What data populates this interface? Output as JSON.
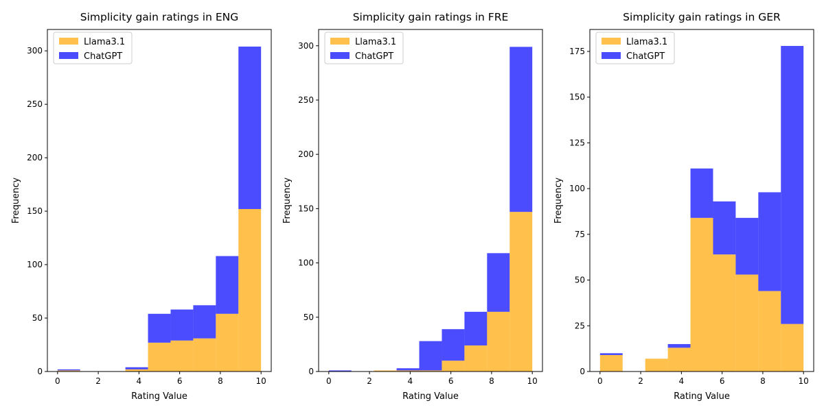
{
  "colors": {
    "llama": "#ffa500",
    "chatgpt": "#0000ff",
    "overlap": "#7f5080"
  },
  "chart_data": [
    {
      "type": "bar",
      "title": "Simplicity gain ratings in ENG",
      "xlabel": "Rating Value",
      "ylabel": "Frequency",
      "xlim": [
        -0.5,
        10.5
      ],
      "ylim": [
        0,
        320
      ],
      "xticks": [
        0,
        2,
        4,
        6,
        8,
        10
      ],
      "yticks": [
        0,
        50,
        100,
        150,
        200,
        250,
        300
      ],
      "bin_edges": [
        0,
        1.1111,
        2.2222,
        3.3333,
        4.4444,
        5.5556,
        6.6667,
        7.7778,
        8.8889,
        10
      ],
      "stacked": true,
      "series": [
        {
          "name": "Llama3.1",
          "values": [
            1,
            0,
            0,
            2,
            27,
            29,
            31,
            54,
            152
          ]
        },
        {
          "name": "ChatGPT",
          "values": [
            1,
            0,
            0,
            2,
            27,
            29,
            31,
            54,
            152
          ]
        }
      ],
      "legend": "top-left"
    },
    {
      "type": "bar",
      "title": "Simplicity gain ratings in FRE",
      "xlabel": "Rating Value",
      "ylabel": "Frequency",
      "xlim": [
        -0.5,
        10.5
      ],
      "ylim": [
        0,
        315
      ],
      "xticks": [
        0,
        2,
        4,
        6,
        8,
        10
      ],
      "yticks": [
        0,
        50,
        100,
        150,
        200,
        250,
        300
      ],
      "bin_edges": [
        0,
        1.1111,
        2.2222,
        3.3333,
        4.4444,
        5.5556,
        6.6667,
        7.7778,
        8.8889,
        10
      ],
      "stacked": true,
      "series": [
        {
          "name": "Llama3.1",
          "values": [
            0,
            0,
            1,
            1,
            1,
            10,
            24,
            55,
            147
          ]
        },
        {
          "name": "ChatGPT",
          "values": [
            1,
            0,
            0,
            2,
            27,
            29,
            31,
            54,
            152
          ]
        }
      ],
      "legend": "top-left"
    },
    {
      "type": "bar",
      "title": "Simplicity gain ratings in GER",
      "xlabel": "Rating Value",
      "ylabel": "Frequency",
      "xlim": [
        -0.5,
        10.5
      ],
      "ylim": [
        0,
        187
      ],
      "xticks": [
        0,
        2,
        4,
        6,
        8,
        10
      ],
      "yticks": [
        0,
        25,
        50,
        75,
        100,
        125,
        150,
        175
      ],
      "bin_edges": [
        0,
        1.1111,
        2.2222,
        3.3333,
        4.4444,
        5.5556,
        6.6667,
        7.7778,
        8.8889,
        10
      ],
      "stacked": true,
      "series": [
        {
          "name": "Llama3.1",
          "values": [
            9,
            0,
            7,
            13,
            84,
            64,
            53,
            44,
            26
          ]
        },
        {
          "name": "ChatGPT",
          "values": [
            1,
            0,
            0,
            2,
            27,
            29,
            31,
            54,
            152
          ]
        }
      ],
      "legend": "top-left"
    }
  ]
}
